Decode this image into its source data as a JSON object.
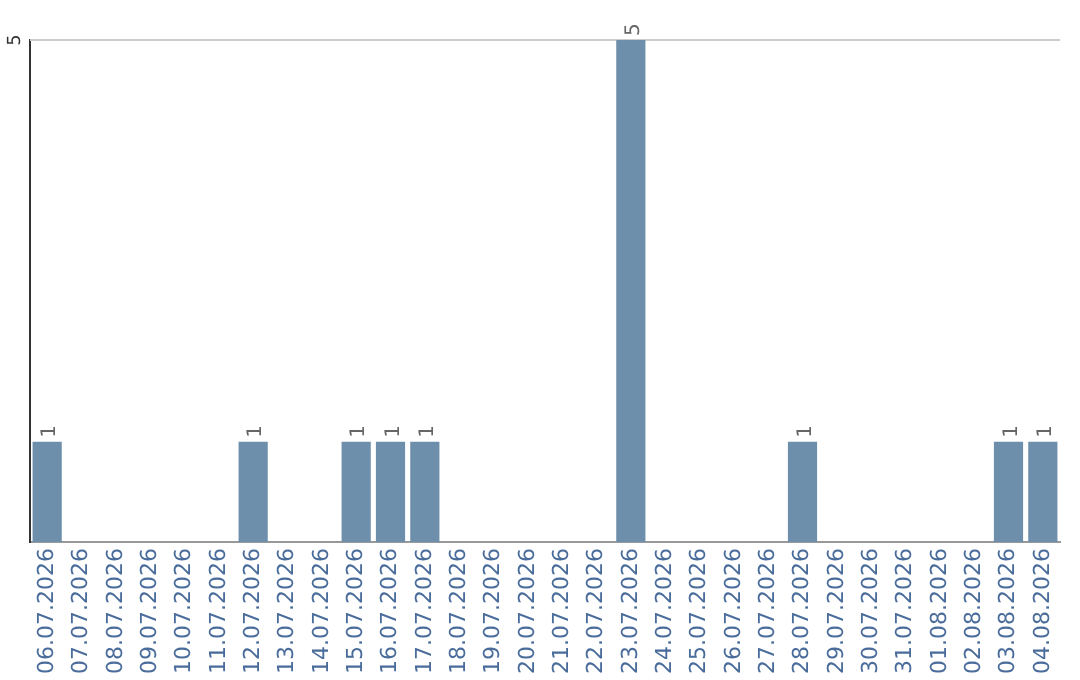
{
  "chart_data": {
    "type": "bar",
    "categories": [
      "06.07.2026",
      "07.07.2026",
      "08.07.2026",
      "09.07.2026",
      "10.07.2026",
      "11.07.2026",
      "12.07.2026",
      "13.07.2026",
      "14.07.2026",
      "15.07.2026",
      "16.07.2026",
      "17.07.2026",
      "18.07.2026",
      "19.07.2026",
      "20.07.2026",
      "21.07.2026",
      "22.07.2026",
      "23.07.2026",
      "24.07.2026",
      "25.07.2026",
      "26.07.2026",
      "27.07.2026",
      "28.07.2026",
      "29.07.2026",
      "30.07.2026",
      "31.07.2026",
      "01.08.2026",
      "02.08.2026",
      "03.08.2026",
      "04.08.2026"
    ],
    "values": [
      1,
      0,
      0,
      0,
      0,
      0,
      1,
      0,
      0,
      1,
      1,
      1,
      0,
      0,
      0,
      0,
      0,
      5,
      0,
      0,
      0,
      0,
      1,
      0,
      0,
      0,
      0,
      0,
      1,
      1
    ],
    "value_labels": [
      "1",
      null,
      null,
      null,
      null,
      null,
      "1",
      null,
      null,
      "1",
      "1",
      "1",
      null,
      null,
      null,
      null,
      null,
      "5",
      null,
      null,
      null,
      null,
      "1",
      null,
      null,
      null,
      null,
      null,
      "1",
      "1"
    ],
    "color": "#6d8fab",
    "ylim": [
      0,
      5
    ],
    "ref_lines": [
      {
        "axis": "y",
        "value": 5,
        "label": "5",
        "color": "#cccccc"
      }
    ],
    "legend": false
  }
}
